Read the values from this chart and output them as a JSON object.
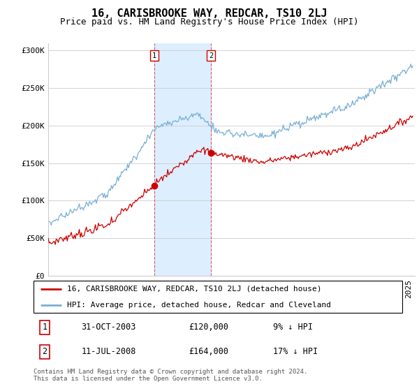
{
  "title": "16, CARISBROOKE WAY, REDCAR, TS10 2LJ",
  "subtitle": "Price paid vs. HM Land Registry's House Price Index (HPI)",
  "ylabel_ticks": [
    "£0",
    "£50K",
    "£100K",
    "£150K",
    "£200K",
    "£250K",
    "£300K"
  ],
  "ytick_values": [
    0,
    50000,
    100000,
    150000,
    200000,
    250000,
    300000
  ],
  "ylim": [
    0,
    310000
  ],
  "xlim_start": 1995.0,
  "xlim_end": 2025.5,
  "sale1_x": 2003.83,
  "sale1_y": 120000,
  "sale2_x": 2008.53,
  "sale2_y": 164000,
  "sale1_date": "31-OCT-2003",
  "sale1_price": "£120,000",
  "sale1_hpi": "9% ↓ HPI",
  "sale2_date": "11-JUL-2008",
  "sale2_price": "£164,000",
  "sale2_hpi": "17% ↓ HPI",
  "line_red_color": "#cc0000",
  "line_blue_color": "#7ab0d4",
  "shade_color": "#ddeeff",
  "grid_color": "#cccccc",
  "vline_color": "#cc0000",
  "title_fontsize": 11,
  "subtitle_fontsize": 9,
  "tick_fontsize": 8,
  "legend_fontsize": 8,
  "footer_fontsize": 6.5,
  "footer_text": "Contains HM Land Registry data © Crown copyright and database right 2024.\nThis data is licensed under the Open Government Licence v3.0.",
  "legend_line1": "16, CARISBROOKE WAY, REDCAR, TS10 2LJ (detached house)",
  "legend_line2": "HPI: Average price, detached house, Redcar and Cleveland"
}
